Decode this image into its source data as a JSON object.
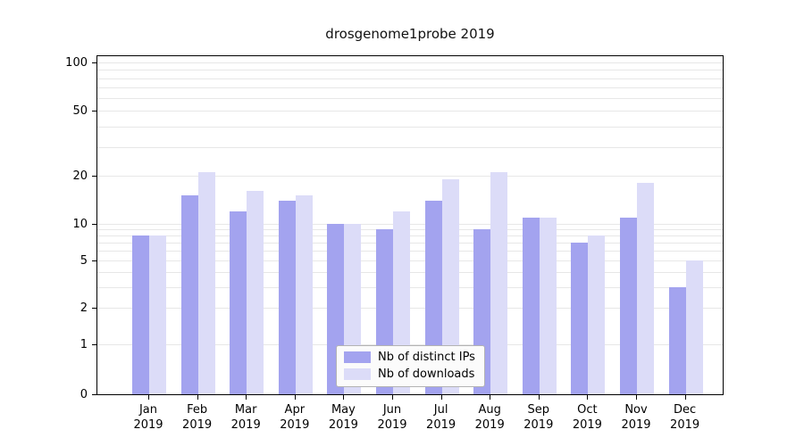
{
  "title": "drosgenome1probe 2019",
  "colors": {
    "ips": "#a3a3ef",
    "downloads": "#dcdcf8",
    "grid": "#e7e7e7",
    "axis": "#000000"
  },
  "legend": {
    "items": [
      {
        "label": "Nb of distinct IPs",
        "color_key": "ips"
      },
      {
        "label": "Nb of downloads",
        "color_key": "downloads"
      }
    ]
  },
  "chart_data": {
    "type": "bar",
    "title": "drosgenome1probe 2019",
    "categories": [
      "Jan 2019",
      "Feb 2019",
      "Mar 2019",
      "Apr 2019",
      "May 2019",
      "Jun 2019",
      "Jul 2019",
      "Aug 2019",
      "Sep 2019",
      "Oct 2019",
      "Nov 2019",
      "Dec 2019"
    ],
    "series": [
      {
        "name": "Nb of distinct IPs",
        "values": [
          8,
          15,
          12,
          14,
          10,
          9,
          14,
          9,
          11,
          7,
          11,
          3
        ]
      },
      {
        "name": "Nb of downloads",
        "values": [
          8,
          21,
          16,
          15,
          10,
          12,
          19,
          21,
          11,
          8,
          18,
          5
        ]
      }
    ],
    "xlabel": "",
    "ylabel": "",
    "yscale": "log (0 pinned at baseline)",
    "yticks": [
      0,
      1,
      2,
      5,
      10,
      20,
      50,
      100
    ],
    "ylim": [
      0,
      110
    ],
    "grid": "horizontal minor+major log gridlines",
    "legend_position": "lower center"
  }
}
